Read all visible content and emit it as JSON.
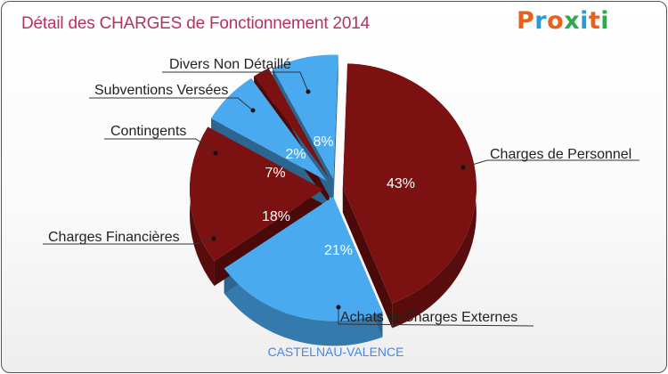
{
  "title": "Détail des CHARGES de Fonctionnement 2014",
  "logo": {
    "text": "Proxiti",
    "colors": [
      "#e8601c",
      "#2a9ad6",
      "#e8601c",
      "#2fa84f",
      "#2a9ad6",
      "#e8601c",
      "#2fa84f"
    ]
  },
  "subtitle": "CASTELNAU-VALENCE",
  "colors": {
    "dark_red": "#7b1111",
    "blue": "#4aaaf0",
    "title": "#b4325e",
    "subtitle": "#4a86e0"
  },
  "chart_data": {
    "type": "pie",
    "style": "3d-exploded",
    "title": "Détail des CHARGES de Fonctionnement 2014",
    "slices": [
      {
        "label": "Charges de Personnel",
        "value": 43,
        "display": "43%",
        "color": "#7b1111"
      },
      {
        "label": "Achats et Charges Externes",
        "value": 21,
        "display": "21%",
        "color": "#4aaaf0"
      },
      {
        "label": "Charges Financières",
        "value": 18,
        "display": "18%",
        "color": "#7b1111"
      },
      {
        "label": "Contingents",
        "value": 7,
        "display": "7%",
        "color": "#4aaaf0"
      },
      {
        "label": "Subventions Versées",
        "value": 2,
        "display": "2%",
        "color": "#7b1111"
      },
      {
        "label": "Divers Non Détaillé",
        "value": 8,
        "display": "8%",
        "color": "#4aaaf0"
      }
    ]
  }
}
